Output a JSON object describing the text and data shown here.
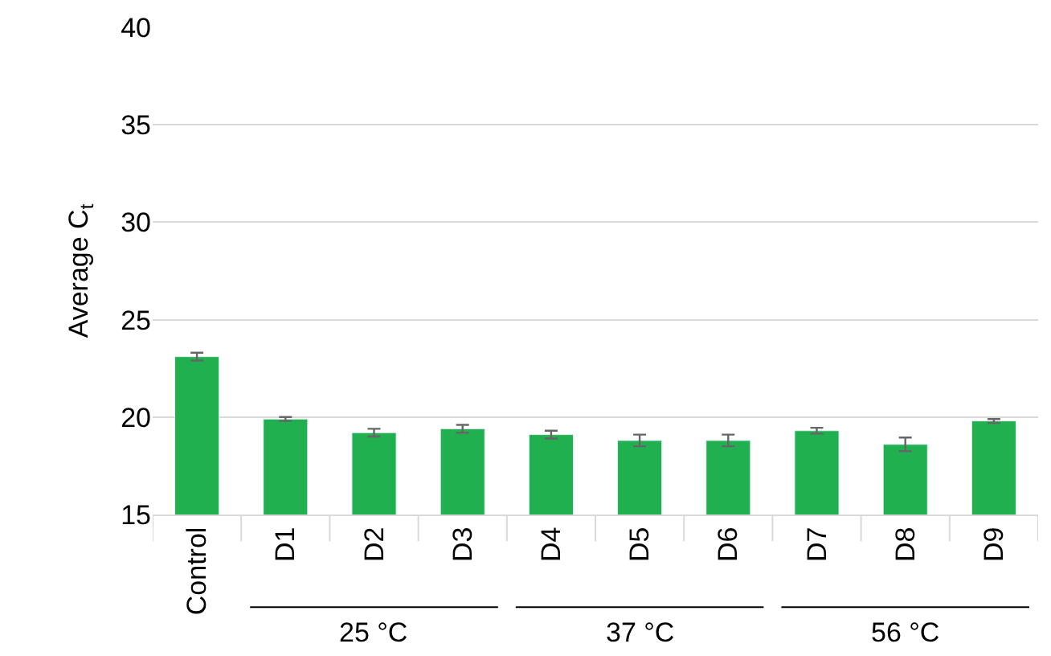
{
  "chart_data": {
    "type": "bar",
    "ylabel": "Average C$_{t}$",
    "categories": [
      "Control",
      "D1",
      "D2",
      "D3",
      "D4",
      "D5",
      "D6",
      "D7",
      "D8",
      "D9"
    ],
    "values": [
      23.1,
      19.9,
      19.2,
      19.4,
      19.1,
      18.8,
      18.8,
      19.3,
      18.6,
      19.8
    ],
    "errors": [
      0.2,
      0.1,
      0.2,
      0.2,
      0.2,
      0.3,
      0.3,
      0.15,
      0.35,
      0.1
    ],
    "color": "#21b04f",
    "ylim": [
      15,
      40
    ],
    "yticks": [
      15,
      20,
      25,
      30,
      35,
      40
    ],
    "grid": "y",
    "annotations": [
      "25 °C",
      "37 °C",
      "56 °C"
    ]
  }
}
